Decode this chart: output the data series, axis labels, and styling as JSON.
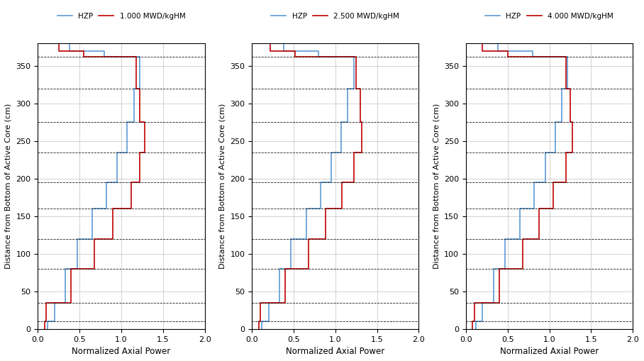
{
  "legend_labels": [
    [
      "HZP",
      "1.000 MWD/kgHM"
    ],
    [
      "HZP",
      "2.500 MWD/kgHM"
    ],
    [
      "HZP",
      "4.000 MWD/kgHM"
    ]
  ],
  "xlabel": "Normalized Axial Power",
  "ylabel": "Distance from Bottom of Active Core (cm)",
  "xlim": [
    0.0,
    2.0
  ],
  "ylim": [
    0,
    380
  ],
  "hzp_color": "#5b9bd5",
  "burnup_color": "#c00000",
  "dashed_lines": [
    10,
    35,
    80,
    120,
    160,
    195,
    235,
    275,
    320,
    362
  ],
  "yticks": [
    0,
    50,
    100,
    150,
    200,
    250,
    300,
    350
  ],
  "xticks": [
    0.0,
    0.5,
    1.0,
    1.5,
    2.0
  ],
  "node_boundaries": [
    0,
    10,
    35,
    80,
    120,
    160,
    195,
    235,
    275,
    320,
    362,
    370,
    378
  ],
  "hzp_powers": [
    0.12,
    0.2,
    0.33,
    0.47,
    0.65,
    0.82,
    0.95,
    1.07,
    1.15,
    1.22,
    0.8,
    0.38
  ],
  "b1_powers": [
    0.08,
    0.1,
    0.4,
    0.68,
    0.9,
    1.12,
    1.22,
    1.28,
    1.22,
    1.18,
    0.55,
    0.25
  ],
  "b2_powers": [
    0.08,
    0.1,
    0.4,
    0.68,
    0.88,
    1.08,
    1.22,
    1.32,
    1.3,
    1.25,
    0.52,
    0.22
  ],
  "b3_powers": [
    0.08,
    0.1,
    0.4,
    0.68,
    0.88,
    1.05,
    1.2,
    1.28,
    1.25,
    1.2,
    0.5,
    0.2
  ]
}
